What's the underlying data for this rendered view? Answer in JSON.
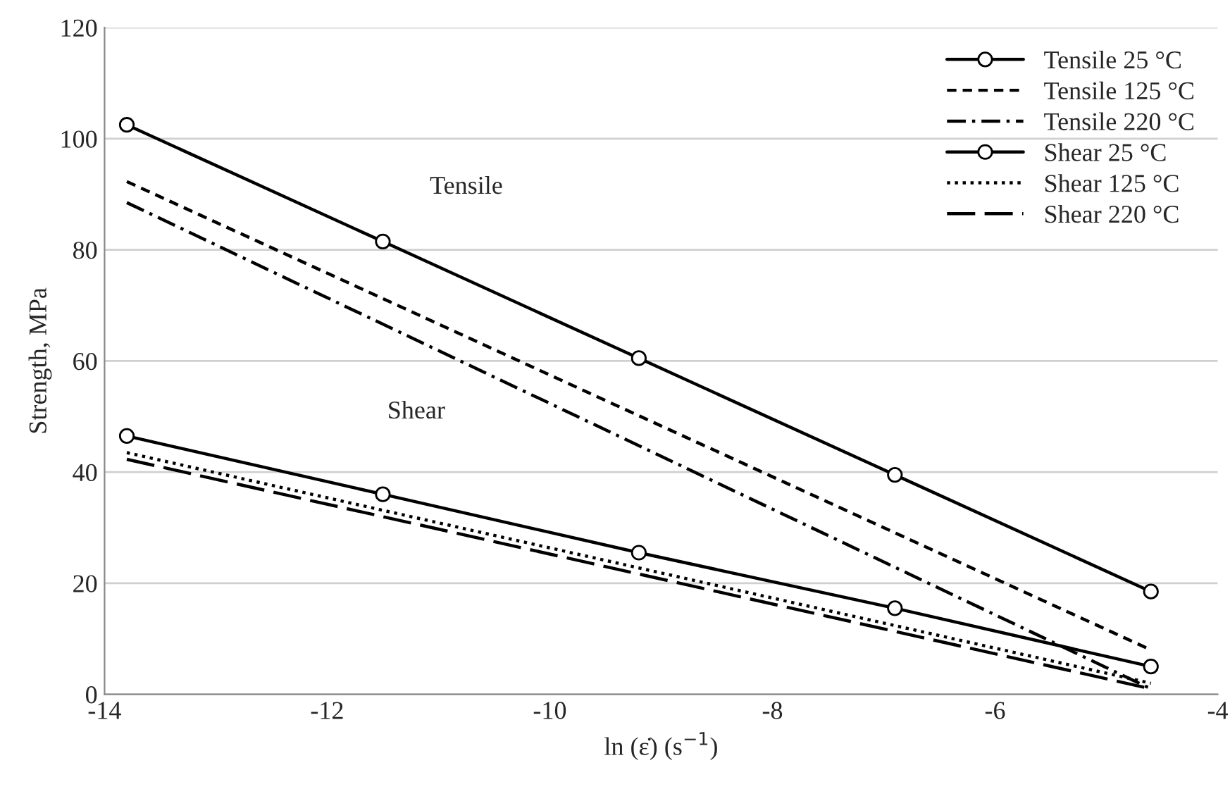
{
  "chart_data": {
    "type": "line",
    "xlabel": "ln (ε̇) (s$^{−1}$)",
    "ylabel": "Strength, MPa",
    "xlim": [
      -14,
      -4
    ],
    "xticks": [
      -14,
      -12,
      -10,
      -8,
      -6,
      -4
    ],
    "ylim": [
      0,
      120
    ],
    "yticks": [
      0,
      20,
      40,
      60,
      80,
      100,
      120
    ],
    "grid": "y",
    "legend": "top right",
    "series": [
      {
        "name": "Tensile 25 °C",
        "color": "#000000",
        "x": [
          -13.8,
          -11.5,
          -9.2,
          -6.9,
          -4.6
        ],
        "values": [
          102.5,
          81.5,
          60.5,
          39.5,
          18.5
        ],
        "marker": "circle",
        "line_style": "solid"
      },
      {
        "name": "Tensile 125 °C",
        "color": "#000000",
        "x": [
          -13.8,
          -4.6
        ],
        "values": [
          92.3,
          8
        ],
        "marker": "none",
        "line_style": "dashed"
      },
      {
        "name": "Tensile 220 °C",
        "color": "#000000",
        "x": [
          -13.8,
          -4.6
        ],
        "values": [
          88.5,
          1
        ],
        "marker": "none",
        "line_style": "dashdot"
      },
      {
        "name": "Shear 25 °C",
        "color": "#000000",
        "x": [
          -13.8,
          -11.5,
          -9.2,
          -6.9,
          -4.6
        ],
        "values": [
          46.5,
          36,
          25.5,
          15.5,
          5
        ],
        "marker": "circle",
        "line_style": "solid"
      },
      {
        "name": "Shear 125 °C",
        "color": "#000000",
        "x": [
          -13.8,
          -4.6
        ],
        "values": [
          43.5,
          2
        ],
        "marker": "none",
        "line_style": "dotted"
      },
      {
        "name": "Shear 220 °C",
        "color": "#000000",
        "x": [
          -13.8,
          -4.6
        ],
        "values": [
          42.3,
          1
        ],
        "marker": "none",
        "line_style": "longdash"
      }
    ],
    "annotations": [
      "Tensile",
      "Shear"
    ]
  }
}
